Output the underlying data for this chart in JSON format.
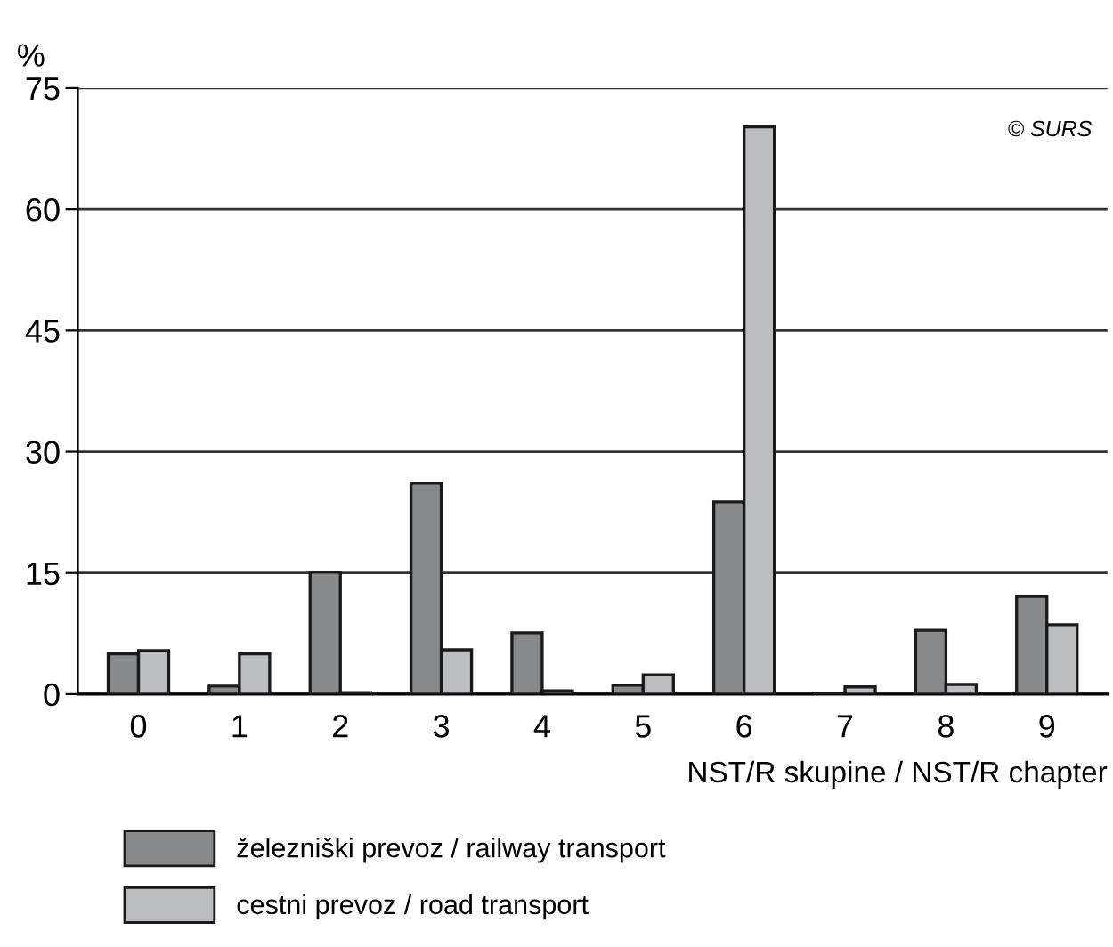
{
  "chart_data": {
    "type": "bar",
    "ylabel": "%",
    "xlabel": "NST/R skupine / NST/R chapter",
    "categories": [
      "0",
      "1",
      "2",
      "3",
      "4",
      "5",
      "6",
      "7",
      "8",
      "9"
    ],
    "series": [
      {
        "name": "železniški prevoz / railway transport",
        "color": "#88898b",
        "values": [
          5.0,
          1.0,
          15.1,
          26.1,
          7.6,
          1.1,
          23.8,
          0.1,
          7.9,
          12.1
        ]
      },
      {
        "name": "cestni prevoz / road transport",
        "color": "#bcbdc0",
        "values": [
          5.4,
          5.0,
          0.2,
          5.5,
          0.4,
          2.4,
          70.2,
          0.9,
          1.2,
          8.6
        ]
      }
    ],
    "ylim": [
      0,
      75
    ],
    "yticks": [
      0,
      15,
      30,
      45,
      60,
      75
    ],
    "grid": "y",
    "legend": "bottom left",
    "annotations": [
      "© SURS"
    ]
  }
}
